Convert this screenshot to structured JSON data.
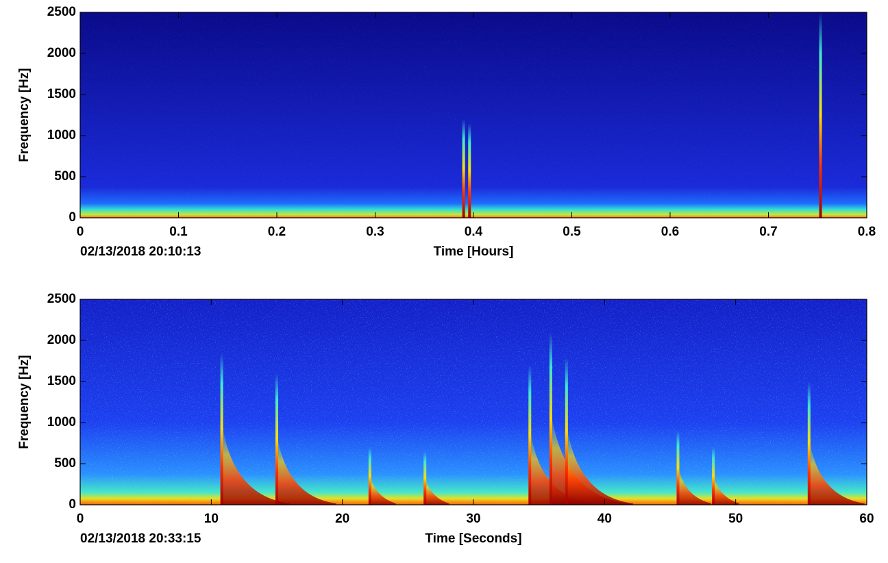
{
  "chart_data": [
    {
      "type": "spectrogram",
      "xlabel": "Time [Hours]",
      "ylabel": "Frequency [Hz]",
      "annotation": "02/13/2018 20:10:13",
      "xlim": [
        0,
        0.8
      ],
      "ylim": [
        0,
        2500
      ],
      "xticks": [
        0,
        0.1,
        0.2,
        0.3,
        0.4,
        0.5,
        0.6,
        0.7,
        0.8
      ],
      "yticks": [
        0,
        500,
        1000,
        1500,
        2000,
        2500
      ],
      "events": {
        "x": [
          0.39,
          0.396,
          0.753
        ],
        "values": [
          1200,
          1150,
          2500
        ]
      }
    },
    {
      "type": "spectrogram",
      "xlabel": "Time [Seconds]",
      "ylabel": "Frequency [Hz]",
      "annotation": "02/13/2018 20:33:15",
      "xlim": [
        0,
        60
      ],
      "ylim": [
        0,
        2500
      ],
      "xticks": [
        0,
        10,
        20,
        30,
        40,
        50,
        60
      ],
      "yticks": [
        0,
        500,
        1000,
        1500,
        2000,
        2500
      ],
      "events": {
        "x": [
          10.8,
          15,
          22.1,
          26.3,
          34.3,
          35.9,
          37.1,
          45.6,
          48.3,
          55.6
        ],
        "values": [
          1850,
          1600,
          700,
          650,
          1700,
          2100,
          1800,
          900,
          700,
          1500
        ]
      }
    }
  ]
}
